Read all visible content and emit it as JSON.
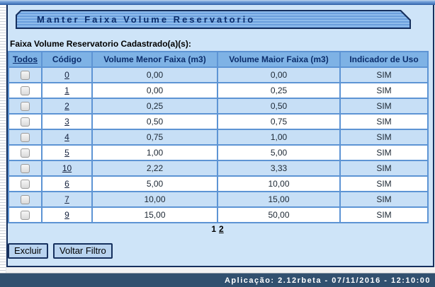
{
  "header": {
    "title": "Manter Faixa Volume Reservatorio"
  },
  "section": {
    "label": "Faixa Volume Reservatorio Cadastrado(a)(s):"
  },
  "table": {
    "columns": [
      "Todos",
      "Código",
      "Volume Menor Faixa (m3)",
      "Volume Maior Faixa (m3)",
      "Indicador de Uso"
    ],
    "rows": [
      {
        "code": "0",
        "menor": "0,00",
        "maior": "0,00",
        "uso": "SIM",
        "checked": false
      },
      {
        "code": "1",
        "menor": "0,00",
        "maior": "0,25",
        "uso": "SIM",
        "checked": false
      },
      {
        "code": "2",
        "menor": "0,25",
        "maior": "0,50",
        "uso": "SIM",
        "checked": false
      },
      {
        "code": "3",
        "menor": "0,50",
        "maior": "0,75",
        "uso": "SIM",
        "checked": false
      },
      {
        "code": "4",
        "menor": "0,75",
        "maior": "1,00",
        "uso": "SIM",
        "checked": false
      },
      {
        "code": "5",
        "menor": "1,00",
        "maior": "5,00",
        "uso": "SIM",
        "checked": false
      },
      {
        "code": "10",
        "menor": "2,22",
        "maior": "3,33",
        "uso": "SIM",
        "checked": false
      },
      {
        "code": "6",
        "menor": "5,00",
        "maior": "10,00",
        "uso": "SIM",
        "checked": false
      },
      {
        "code": "7",
        "menor": "10,00",
        "maior": "15,00",
        "uso": "SIM",
        "checked": false
      },
      {
        "code": "9",
        "menor": "15,00",
        "maior": "50,00",
        "uso": "SIM",
        "checked": false
      }
    ]
  },
  "pagination": {
    "pages": [
      {
        "label": "1",
        "current": true
      },
      {
        "label": "2",
        "current": false
      }
    ]
  },
  "buttons": {
    "excluir": "Excluir",
    "voltar": "Voltar Filtro"
  },
  "footer": {
    "text": "Aplicação: 2.12rbeta - 07/11/2016 - 12:10:00"
  },
  "colors": {
    "content_bg": "#cee4f8",
    "table_header_bg": "#7eb2e5",
    "row_odd_bg": "#c7dff6",
    "row_even_bg": "#ffffff",
    "grid_border": "#5d94d4",
    "navy_text": "#0b2d6b",
    "titlebar_border": "#16305e",
    "footer_bg": "#31506f",
    "footer_text": "#ffffff"
  }
}
